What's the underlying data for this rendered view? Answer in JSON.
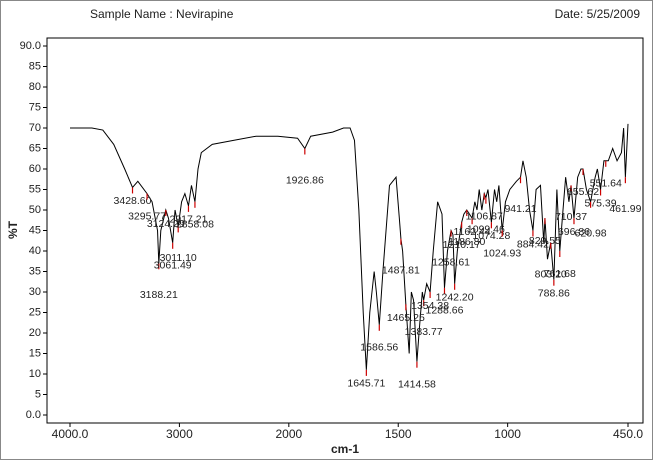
{
  "chart_data": {
    "type": "line",
    "title": "Sample Name : Nevirapine",
    "subtitle": "Date: 5/25/2009",
    "x_label": "cm-1",
    "y_label": "%T",
    "xlim": [
      4000,
      450
    ],
    "xscale_break": 2000,
    "xticks": [
      {
        "value": 4000,
        "label": "4000.0"
      },
      3000,
      2000,
      1500,
      1000,
      {
        "value": 450,
        "label": "450.0"
      }
    ],
    "ylim": [
      0,
      90
    ],
    "yticks": [
      {
        "value": 0,
        "label": "0.0"
      },
      5,
      10,
      15,
      20,
      25,
      30,
      35,
      40,
      45,
      50,
      55,
      60,
      65,
      70,
      75,
      80,
      85,
      {
        "value": 90,
        "label": "90.0"
      }
    ],
    "x": [
      4000,
      3800,
      3700,
      3600,
      3500,
      3428.6,
      3380,
      3295.77,
      3250,
      3200,
      3188.21,
      3170,
      3124.29,
      3100,
      3061.49,
      3040,
      3011.1,
      2980,
      2950,
      2917.21,
      2890,
      2858.08,
      2830,
      2800,
      2700,
      2500,
      2300,
      2100,
      1960,
      1926.86,
      1900,
      1800,
      1750,
      1720,
      1700,
      1680,
      1660,
      1645.71,
      1630,
      1610,
      1600,
      1586.56,
      1570,
      1540,
      1510,
      1495,
      1487.81,
      1480,
      1465.25,
      1450,
      1440,
      1430,
      1414.58,
      1405,
      1390,
      1383.77,
      1370,
      1354.38,
      1340,
      1320,
      1300,
      1288.66,
      1275,
      1258.61,
      1250,
      1242.2,
      1230,
      1210.17,
      1200,
      1186.8,
      1162.44,
      1150,
      1140,
      1130,
      1118,
      1106.87,
      1099.46,
      1090,
      1074.28,
      1060,
      1050,
      1040,
      1024.93,
      1010,
      990,
      960,
      941.21,
      930,
      915,
      900,
      884.42,
      870,
      850,
      835,
      829.55,
      818,
      803.2,
      788.86,
      775,
      761.68,
      750,
      735,
      720,
      710.37,
      696.86,
      680,
      665,
      655.62,
      640,
      620.98,
      600,
      590,
      575.39,
      560,
      551.64,
      540,
      520,
      500,
      480,
      470,
      461.99,
      450
    ],
    "series": [
      {
        "name": "Nevirapine",
        "color": "#000000",
        "values": [
          70,
          70,
          69.5,
          66,
          60,
          55.5,
          57,
          54,
          52,
          45,
          37,
          45,
          50,
          48,
          42,
          50,
          46,
          52,
          54,
          51,
          56,
          52,
          60,
          64,
          66,
          67,
          68,
          68,
          67.5,
          65,
          68,
          69,
          70,
          70,
          67,
          50,
          25,
          11,
          25,
          35,
          30,
          22,
          35,
          56,
          58,
          48,
          43,
          40,
          27,
          15,
          30,
          28,
          13,
          20,
          30,
          28,
          32,
          30,
          40,
          52,
          49,
          31,
          40,
          45,
          44,
          32,
          40,
          47,
          49,
          50,
          48,
          52,
          50,
          55,
          50,
          54,
          53,
          55,
          47,
          55,
          52,
          56,
          45,
          52,
          55,
          57,
          58,
          62,
          58,
          50,
          45,
          55,
          56,
          42,
          48,
          38,
          42,
          33,
          55,
          40,
          48,
          58,
          52,
          56,
          48,
          58,
          60,
          60,
          55,
          52,
          58,
          60,
          55,
          62,
          62,
          62,
          65,
          62,
          64,
          70,
          58,
          71
        ]
      }
    ],
    "peaks": {
      "color": "#cc0000",
      "x": [
        3428.6,
        3295.77,
        3188.21,
        3124.29,
        3061.49,
        3011.1,
        2917.21,
        2858.08,
        1926.86,
        1645.71,
        1586.56,
        1487.81,
        1465.25,
        1414.58,
        1383.77,
        1354.38,
        1288.66,
        1258.61,
        1242.2,
        1210.17,
        1186.8,
        1162.44,
        1106.87,
        1099.46,
        1074.28,
        1024.93,
        941.21,
        884.42,
        829.55,
        803.2,
        788.86,
        761.68,
        710.37,
        696.86,
        655.62,
        620.98,
        575.39,
        551.64,
        461.99
      ],
      "y": [
        55.5,
        54,
        37,
        50,
        42,
        46,
        51,
        52,
        65,
        11,
        22,
        43,
        27,
        13,
        28,
        30,
        31,
        45,
        32,
        47,
        50,
        48,
        54,
        53,
        47,
        45,
        58,
        45,
        48,
        42,
        33,
        40,
        56,
        48,
        60,
        52,
        55,
        62,
        58
      ],
      "labels": [
        "3428.60",
        "3295.77",
        "3188.21",
        "3124.29",
        "3061.49",
        "3011.10",
        "2917.21",
        "2858.08",
        "1926.86",
        "1645.71",
        "1586.56",
        "1487.81",
        "1465.25",
        "1414.58",
        "1383.77",
        "1354.38",
        "1288.66",
        "1258.61",
        "1242.20",
        "1210.17",
        "1186.80",
        "1162.44",
        "1106.87",
        "1099.46",
        "1074.28",
        "1024.93",
        "941.21",
        "884.42",
        "829.55",
        "803.20",
        "788.86",
        "761.68",
        "710.37",
        "696.86",
        "655.62",
        "620.98",
        "575.39",
        "551.64",
        "461.99"
      ]
    }
  }
}
